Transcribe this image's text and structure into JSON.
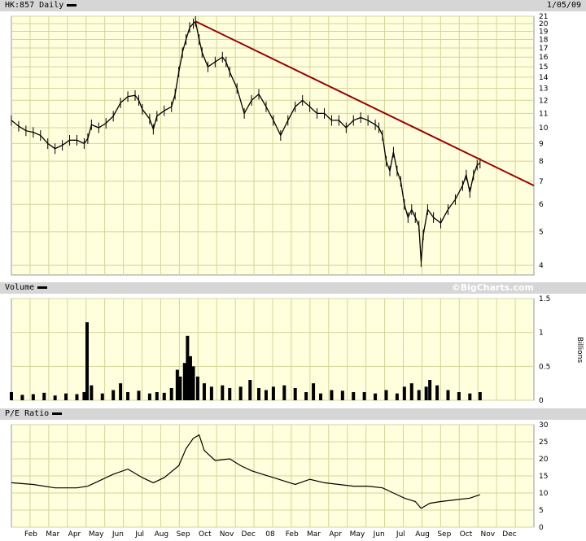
{
  "header": {
    "symbol_label": "HK:857 Daily",
    "date_label": "1/05/09",
    "volume_label": "Volume",
    "brand": "©BigCharts.com",
    "pe_label": "P/E Ratio",
    "billions_label": "Billions"
  },
  "chart_data": [
    {
      "type": "line",
      "name": "price",
      "yscale": "log",
      "ylim": [
        3.75,
        21
      ],
      "y_ticks": [
        4,
        5,
        6,
        7,
        8,
        9,
        10,
        11,
        12,
        13,
        14,
        15,
        16,
        17,
        18,
        19,
        20,
        21
      ],
      "x_ticks": [
        "Feb",
        "Mar",
        "Apr",
        "May",
        "Jun",
        "Jul",
        "Aug",
        "Sep",
        "Oct",
        "Nov",
        "Dec",
        "08",
        "Feb",
        "Mar",
        "Apr",
        "May",
        "Jun",
        "Jul",
        "Aug",
        "Sep",
        "Oct",
        "Nov",
        "Dec"
      ],
      "x_range_days": [
        0,
        718
      ],
      "points": [
        [
          0,
          10.5
        ],
        [
          10,
          10.1
        ],
        [
          20,
          9.8
        ],
        [
          30,
          9.7
        ],
        [
          40,
          9.5
        ],
        [
          50,
          9.0
        ],
        [
          60,
          8.7
        ],
        [
          70,
          8.9
        ],
        [
          80,
          9.2
        ],
        [
          90,
          9.2
        ],
        [
          100,
          9.0
        ],
        [
          105,
          9.3
        ],
        [
          110,
          10.2
        ],
        [
          120,
          10.0
        ],
        [
          130,
          10.3
        ],
        [
          140,
          10.8
        ],
        [
          150,
          11.8
        ],
        [
          160,
          12.3
        ],
        [
          170,
          12.4
        ],
        [
          175,
          12.0
        ],
        [
          180,
          11.3
        ],
        [
          190,
          10.6
        ],
        [
          195,
          9.9
        ],
        [
          200,
          10.8
        ],
        [
          210,
          11.2
        ],
        [
          220,
          11.5
        ],
        [
          225,
          12.5
        ],
        [
          230,
          14.5
        ],
        [
          235,
          16.5
        ],
        [
          240,
          18.0
        ],
        [
          245,
          19.5
        ],
        [
          250,
          20.0
        ],
        [
          253,
          20.3
        ],
        [
          258,
          18.0
        ],
        [
          262,
          16.5
        ],
        [
          270,
          15.0
        ],
        [
          280,
          15.5
        ],
        [
          290,
          16.0
        ],
        [
          295,
          15.5
        ],
        [
          300,
          14.5
        ],
        [
          310,
          13.0
        ],
        [
          320,
          11.0
        ],
        [
          330,
          12.0
        ],
        [
          340,
          12.5
        ],
        [
          350,
          11.5
        ],
        [
          360,
          10.5
        ],
        [
          370,
          9.5
        ],
        [
          380,
          10.5
        ],
        [
          390,
          11.5
        ],
        [
          400,
          12.0
        ],
        [
          410,
          11.5
        ],
        [
          420,
          11.0
        ],
        [
          430,
          11.0
        ],
        [
          440,
          10.5
        ],
        [
          450,
          10.5
        ],
        [
          460,
          10.0
        ],
        [
          470,
          10.5
        ],
        [
          480,
          10.7
        ],
        [
          490,
          10.5
        ],
        [
          500,
          10.2
        ],
        [
          505,
          10.0
        ],
        [
          510,
          9.5
        ],
        [
          515,
          8.0
        ],
        [
          520,
          7.5
        ],
        [
          525,
          8.5
        ],
        [
          530,
          7.5
        ],
        [
          535,
          7.0
        ],
        [
          540,
          6.0
        ],
        [
          545,
          5.5
        ],
        [
          550,
          5.8
        ],
        [
          555,
          5.5
        ],
        [
          560,
          5.2
        ],
        [
          563,
          4.1
        ],
        [
          566,
          4.9
        ],
        [
          572,
          5.8
        ],
        [
          580,
          5.5
        ],
        [
          590,
          5.3
        ],
        [
          600,
          5.8
        ],
        [
          610,
          6.2
        ],
        [
          620,
          6.8
        ],
        [
          625,
          7.3
        ],
        [
          630,
          6.5
        ],
        [
          635,
          7.3
        ],
        [
          640,
          7.8
        ],
        [
          644,
          7.9
        ]
      ],
      "trendline": [
        [
          253,
          20.3
        ],
        [
          718,
          6.8
        ]
      ]
    },
    {
      "type": "bar",
      "name": "volume",
      "ylabel": "Billions",
      "ylim": [
        0,
        1.5
      ],
      "y_ticks": [
        "0",
        "0.5",
        "1",
        "1.5"
      ],
      "bars": [
        [
          0,
          0.12
        ],
        [
          15,
          0.08
        ],
        [
          30,
          0.09
        ],
        [
          45,
          0.11
        ],
        [
          60,
          0.07
        ],
        [
          75,
          0.1
        ],
        [
          90,
          0.09
        ],
        [
          100,
          0.12
        ],
        [
          104,
          1.15
        ],
        [
          110,
          0.22
        ],
        [
          125,
          0.1
        ],
        [
          140,
          0.15
        ],
        [
          150,
          0.25
        ],
        [
          160,
          0.12
        ],
        [
          175,
          0.14
        ],
        [
          190,
          0.1
        ],
        [
          200,
          0.12
        ],
        [
          210,
          0.11
        ],
        [
          220,
          0.18
        ],
        [
          228,
          0.45
        ],
        [
          232,
          0.35
        ],
        [
          238,
          0.55
        ],
        [
          242,
          0.95
        ],
        [
          246,
          0.65
        ],
        [
          250,
          0.5
        ],
        [
          256,
          0.35
        ],
        [
          265,
          0.25
        ],
        [
          275,
          0.2
        ],
        [
          290,
          0.22
        ],
        [
          300,
          0.18
        ],
        [
          315,
          0.2
        ],
        [
          328,
          0.3
        ],
        [
          340,
          0.18
        ],
        [
          350,
          0.15
        ],
        [
          360,
          0.2
        ],
        [
          375,
          0.22
        ],
        [
          390,
          0.18
        ],
        [
          405,
          0.12
        ],
        [
          415,
          0.25
        ],
        [
          425,
          0.1
        ],
        [
          440,
          0.15
        ],
        [
          455,
          0.14
        ],
        [
          470,
          0.12
        ],
        [
          485,
          0.12
        ],
        [
          500,
          0.1
        ],
        [
          515,
          0.15
        ],
        [
          530,
          0.1
        ],
        [
          540,
          0.2
        ],
        [
          550,
          0.25
        ],
        [
          560,
          0.15
        ],
        [
          570,
          0.2
        ],
        [
          575,
          0.3
        ],
        [
          585,
          0.22
        ],
        [
          600,
          0.15
        ],
        [
          615,
          0.12
        ],
        [
          630,
          0.1
        ],
        [
          644,
          0.12
        ]
      ]
    },
    {
      "type": "line",
      "name": "pe_ratio",
      "ylim": [
        0,
        30
      ],
      "y_ticks": [
        "0",
        "5",
        "10",
        "15",
        "20",
        "25",
        "30"
      ],
      "points": [
        [
          0,
          13.0
        ],
        [
          30,
          12.5
        ],
        [
          60,
          11.5
        ],
        [
          90,
          11.5
        ],
        [
          105,
          12.0
        ],
        [
          120,
          13.5
        ],
        [
          140,
          15.5
        ],
        [
          160,
          17.0
        ],
        [
          180,
          14.5
        ],
        [
          195,
          13.0
        ],
        [
          210,
          14.5
        ],
        [
          230,
          18.0
        ],
        [
          240,
          23.0
        ],
        [
          250,
          26.0
        ],
        [
          258,
          27.0
        ],
        [
          265,
          22.5
        ],
        [
          280,
          19.5
        ],
        [
          300,
          20.0
        ],
        [
          315,
          18.0
        ],
        [
          330,
          16.5
        ],
        [
          345,
          15.5
        ],
        [
          360,
          14.5
        ],
        [
          375,
          13.5
        ],
        [
          390,
          12.5
        ],
        [
          410,
          14.0
        ],
        [
          430,
          13.0
        ],
        [
          450,
          12.5
        ],
        [
          470,
          12.0
        ],
        [
          490,
          12.0
        ],
        [
          510,
          11.5
        ],
        [
          525,
          10.0
        ],
        [
          540,
          8.5
        ],
        [
          555,
          7.5
        ],
        [
          563,
          5.5
        ],
        [
          575,
          7.0
        ],
        [
          590,
          7.5
        ],
        [
          610,
          8.0
        ],
        [
          630,
          8.5
        ],
        [
          644,
          9.5
        ]
      ]
    }
  ]
}
